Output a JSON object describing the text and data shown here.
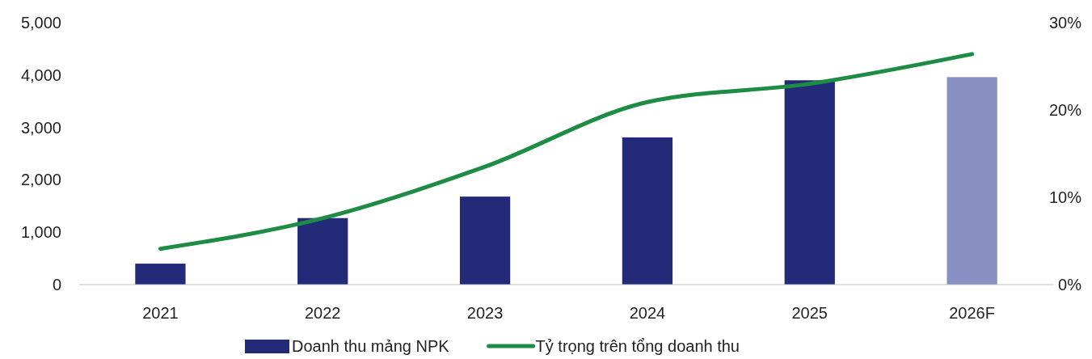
{
  "chart_data": {
    "type": "bar",
    "categories": [
      "2021",
      "2022",
      "2023",
      "2024",
      "2025",
      "2026F"
    ],
    "series": [
      {
        "name": "Doanh thu mảng NPK",
        "color": "#232a78",
        "colors": [
          "#232a78",
          "#232a78",
          "#232a78",
          "#232a78",
          "#232a78",
          "#8a90c4"
        ],
        "values": [
          400,
          1270,
          1680,
          2810,
          3900,
          3960
        ]
      },
      {
        "name": "Tỷ trọng trên tổng doanh thu",
        "type": "line",
        "axis": "y2",
        "color": "#1e8c45",
        "values": [
          4.1,
          7.6,
          13.5,
          20.9,
          23.0,
          26.4
        ]
      }
    ],
    "ylim": [
      0,
      5000
    ],
    "yticks": [
      0,
      {
        "value": 1000,
        "label": "1,000"
      },
      {
        "value": 2000,
        "label": "2,000"
      },
      {
        "value": 3000,
        "label": "3,000"
      },
      {
        "value": 4000,
        "label": "4,000"
      },
      {
        "value": 5000,
        "label": "5,000"
      }
    ],
    "y2lim": [
      0,
      30
    ],
    "y2ticks": [
      {
        "value": 0,
        "label": "0%"
      },
      {
        "value": 10,
        "label": "10%"
      },
      {
        "value": 20,
        "label": "20%"
      },
      {
        "value": 30,
        "label": "30%"
      }
    ],
    "legend": "bottom",
    "line_style": "solid",
    "marker": "none"
  }
}
